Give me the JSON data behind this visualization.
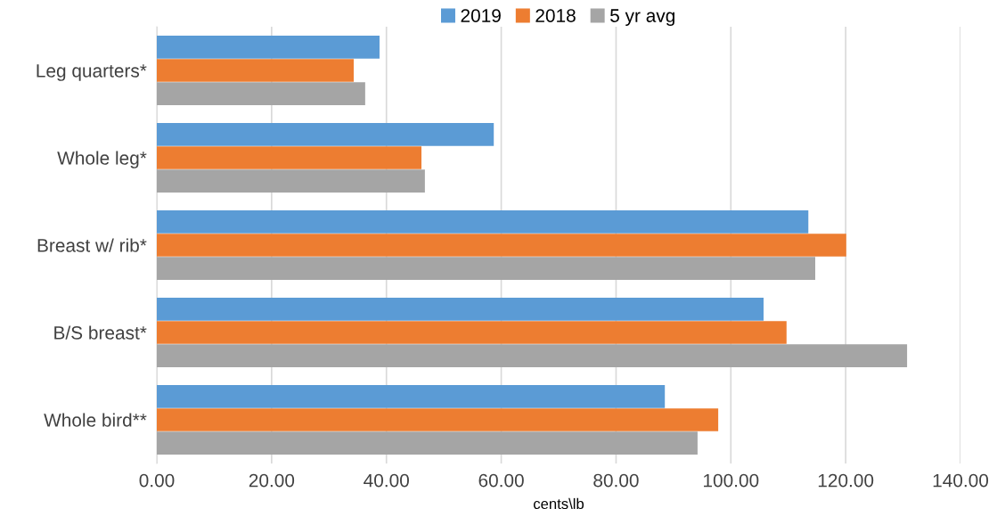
{
  "chart_data": {
    "type": "bar",
    "orientation": "horizontal",
    "xlabel": "cents\\lb",
    "categories": [
      "Leg quarters*",
      "Whole leg*",
      "Breast w/ rib*",
      "B/S breast*",
      "Whole bird**"
    ],
    "series": [
      {
        "name": "2019",
        "color": "#5b9bd5",
        "values": [
          38.8,
          58.7,
          113.5,
          105.7,
          88.5
        ]
      },
      {
        "name": "2018",
        "color": "#ed7d31",
        "values": [
          34.3,
          46.1,
          120.1,
          109.7,
          97.8
        ]
      },
      {
        "name": "5 yr avg",
        "color": "#a5a5a5",
        "values": [
          36.3,
          46.7,
          114.7,
          130.7,
          94.2
        ]
      }
    ],
    "xlim": [
      0,
      140
    ],
    "xticks": [
      {
        "value": 0,
        "label": "0.00"
      },
      {
        "value": 20,
        "label": "20.00"
      },
      {
        "value": 40,
        "label": "40.00"
      },
      {
        "value": 60,
        "label": "60.00"
      },
      {
        "value": 80,
        "label": "80.00"
      },
      {
        "value": 100,
        "label": "100.00"
      },
      {
        "value": 120,
        "label": "120.00"
      },
      {
        "value": 140,
        "label": "140.00"
      }
    ],
    "grid": "x",
    "legend": "top"
  }
}
